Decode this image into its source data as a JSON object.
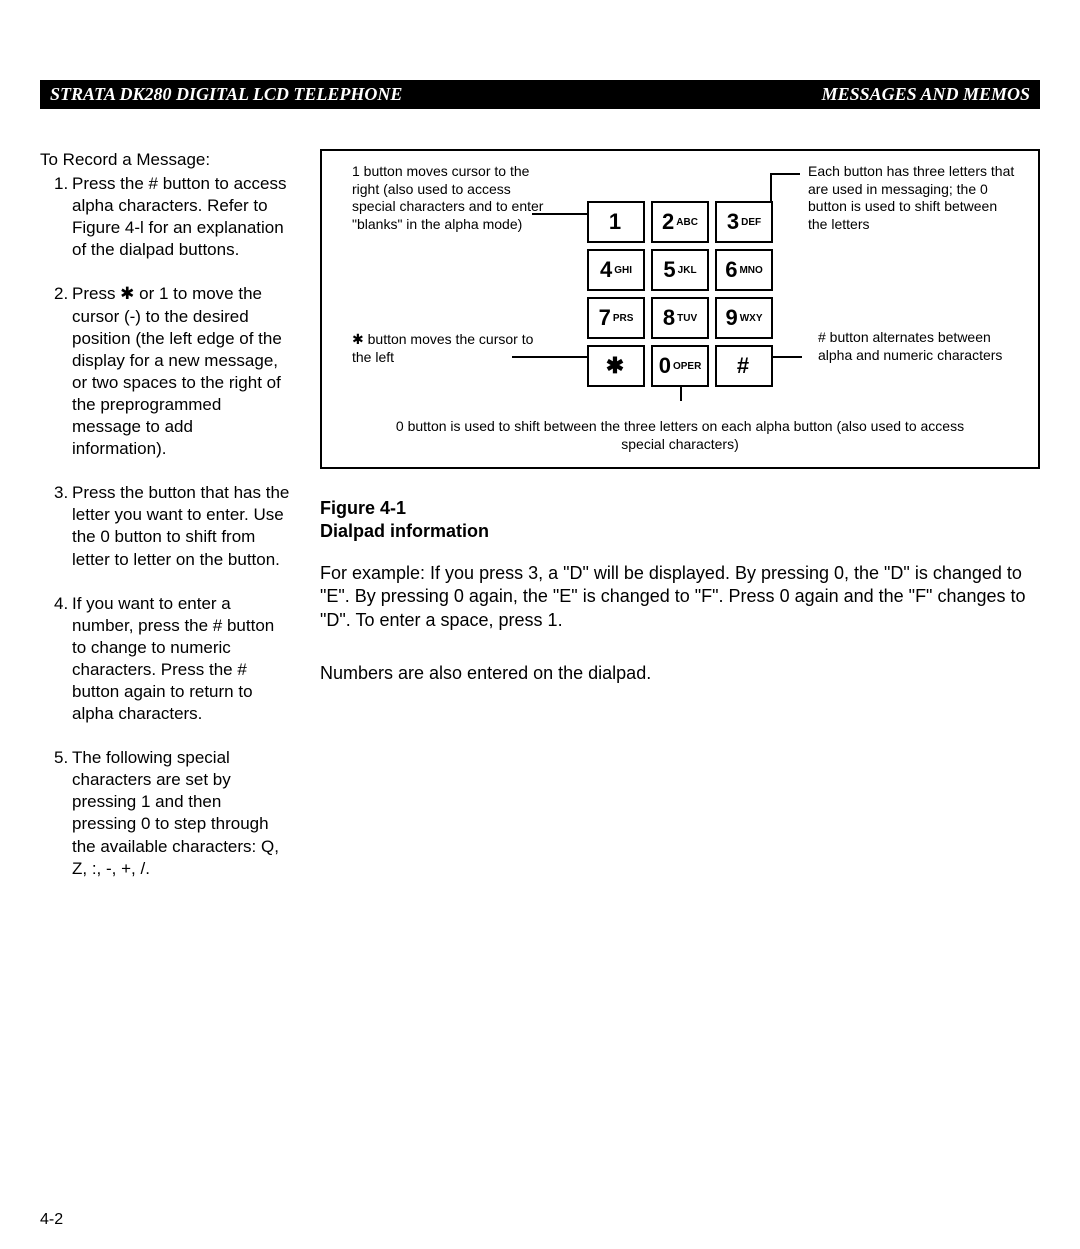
{
  "header": {
    "left": "STRATA DK280 DIGITAL LCD TELEPHONE",
    "right": "MESSAGES AND MEMOS"
  },
  "left": {
    "heading": "To Record a Message:",
    "steps": [
      "Press the # button to access alpha characters. Refer to Figure 4-l for an explanation of the dialpad buttons.",
      "Press ✱ or 1 to move the cursor (-) to the desired position (the left edge of the display for a new message, or two spaces to the right of the preprogrammed message to add information).",
      "Press the button that has the letter you want to enter. Use the 0 button to shift from letter to letter on the button.",
      "If you want to enter a number, press the # button to change to numeric characters. Press the # button again to return to alpha characters.",
      "The following special characters are set by pressing 1 and then pressing 0 to step through the available characters: Q, Z, :, -, +, /."
    ]
  },
  "diagram": {
    "keys": [
      {
        "main": "1",
        "sub": ""
      },
      {
        "main": "2",
        "sub": "ABC"
      },
      {
        "main": "3",
        "sub": "DEF"
      },
      {
        "main": "4",
        "sub": "GHI"
      },
      {
        "main": "5",
        "sub": "JKL"
      },
      {
        "main": "6",
        "sub": "MNO"
      },
      {
        "main": "7",
        "sub": "PRS"
      },
      {
        "main": "8",
        "sub": "TUV"
      },
      {
        "main": "9",
        "sub": "WXY"
      },
      {
        "main": "✱",
        "sub": ""
      },
      {
        "main": "0",
        "sub": "OPER"
      },
      {
        "main": "#",
        "sub": ""
      }
    ],
    "annot_tl": "1 button moves cursor to the right (also used to access special characters and to enter \"blanks\" in the alpha mode)",
    "annot_tr": "Each button has three letters that are used in messaging; the 0 button is used to shift between the letters",
    "annot_bl": "✱ button moves the cursor to the left",
    "annot_br": "# button alternates between alpha and numeric characters",
    "annot_bottom": "0 button is used to shift between the three letters on each alpha button (also used to access special characters)"
  },
  "figure": {
    "label": "Figure 4-1",
    "title": "Dialpad information"
  },
  "body": {
    "p1": "For example: If you press 3, a \"D\" will be displayed. By pressing 0, the \"D\" is changed to \"E\". By pressing 0 again, the \"E\" is changed to \"F\". Press 0 again and the \"F\" changes to \"D\". To enter a space, press 1.",
    "p2": "Numbers are also entered on the dialpad."
  },
  "page_num": "4-2",
  "colors": {
    "bg": "#ffffff",
    "fg": "#000000"
  }
}
